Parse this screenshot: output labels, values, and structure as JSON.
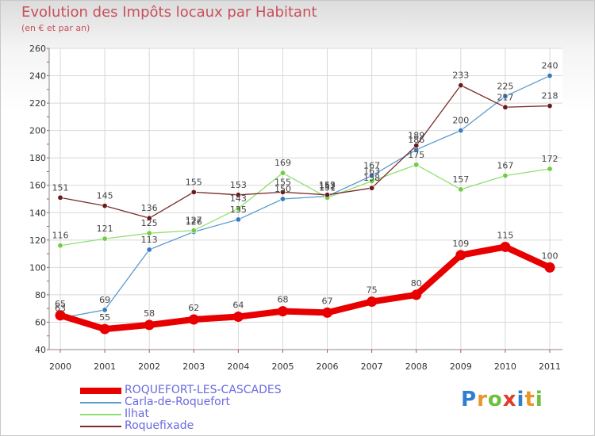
{
  "header": {
    "title": "Evolution des Impôts locaux par Habitant",
    "subtitle": "(en € et par an)"
  },
  "logo": {
    "letters": [
      "P",
      "r",
      "o",
      "x",
      "i",
      "t",
      "i"
    ],
    "colors": [
      "#2f7fd0",
      "#e8962a",
      "#6cc03c",
      "#e03c28",
      "#2f7fd0",
      "#e8962a",
      "#6cc03c"
    ]
  },
  "chart_data": {
    "type": "line",
    "title": "Evolution des Impôts locaux par Habitant",
    "subtitle": "(en € et par an)",
    "xlabel": "",
    "ylabel": "",
    "x": [
      "2000",
      "2001",
      "2002",
      "2003",
      "2004",
      "2005",
      "2006",
      "2007",
      "2008",
      "2009",
      "2010",
      "2011"
    ],
    "ylim": [
      40,
      260
    ],
    "yticks": [
      "40",
      "60",
      "80",
      "100",
      "120",
      "140",
      "160",
      "180",
      "200",
      "220",
      "240",
      "260"
    ],
    "grid": true,
    "legend_position": "bottom-left",
    "series": [
      {
        "name": "ROQUEFORT-LES-CASCADES",
        "color": "#e80000",
        "values": [
          65,
          55,
          58,
          62,
          64,
          68,
          67,
          75,
          80,
          109,
          115,
          100
        ],
        "labels": [
          "65",
          "55",
          "58",
          "62",
          "64",
          "68",
          "67",
          "75",
          "80",
          "109",
          "115",
          "100"
        ]
      },
      {
        "name": "Carla-de-Roquefort",
        "color": "#5a9ad0",
        "values": [
          63,
          69,
          113,
          126,
          135,
          150,
          152,
          167,
          186,
          200,
          225,
          240
        ],
        "labels": [
          "63",
          "69",
          "113",
          "126",
          "135",
          "150",
          "152",
          "167",
          "186",
          "200",
          "225",
          "240"
        ]
      },
      {
        "name": "Ilhat",
        "color": "#90e070",
        "values": [
          116,
          121,
          125,
          127,
          143,
          169,
          151,
          163,
          175,
          157,
          167,
          172
        ],
        "labels": [
          "116",
          "121",
          "125",
          "127",
          "143",
          "169",
          "151",
          "163",
          "175",
          "157",
          "167",
          "172"
        ]
      },
      {
        "name": "Roquefixade",
        "color": "#7a2a2a",
        "values": [
          151,
          145,
          136,
          155,
          153,
          155,
          153,
          158,
          189,
          233,
          217,
          218
        ],
        "labels": [
          "151",
          "145",
          "136",
          "155",
          "153",
          "155",
          "153",
          "158",
          "189",
          "233",
          "217",
          "218"
        ]
      }
    ]
  }
}
